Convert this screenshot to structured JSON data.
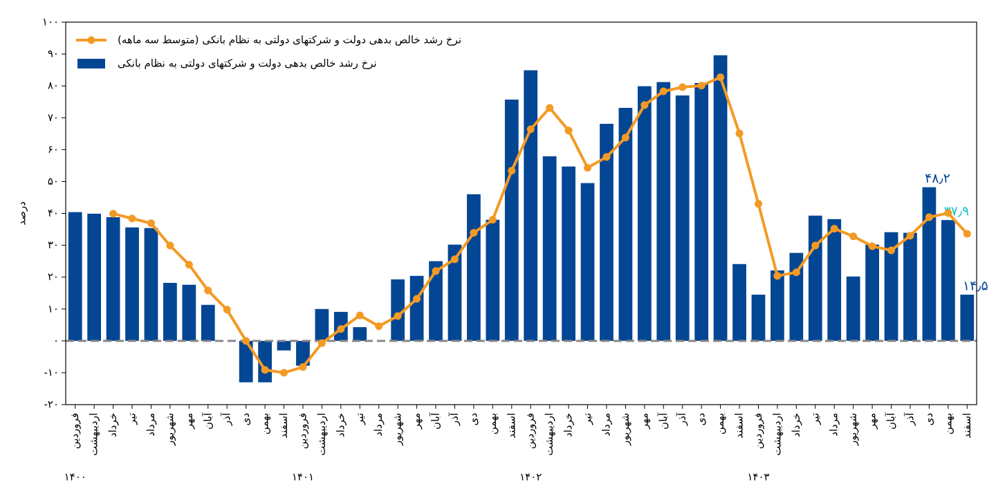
{
  "chart_data": {
    "type": "bar",
    "y_label": "درصد",
    "categories": [
      "فروردین",
      "اردیبهشت",
      "خرداد",
      "تیر",
      "مرداد",
      "شهریور",
      "مهر",
      "آبان",
      "آذر",
      "دی",
      "بهمن",
      "اسفند",
      "فروردین",
      "اردیبهشت",
      "خرداد",
      "تیر",
      "مرداد",
      "شهریور",
      "مهر",
      "آبان",
      "آذر",
      "دی",
      "بهمن",
      "اسفند",
      "فروردین",
      "اردیبهشت",
      "خرداد",
      "تیر",
      "مرداد",
      "شهریور",
      "مهر",
      "آبان",
      "آذر",
      "دی",
      "بهمن",
      "اسفند",
      "فروردین",
      "اردیبهشت",
      "خرداد",
      "تیر",
      "مرداد",
      "شهریور",
      "مهر",
      "آبان",
      "آذر",
      "دی",
      "بهمن",
      "اسفند"
    ],
    "years": [
      "۱۴۰۰",
      "۱۴۰۱",
      "۱۴۰۲",
      "۱۴۰۳"
    ],
    "series": [
      {
        "name": "نرخ رشد خالص بدهی دولت و شرکتهای دولتی به نظام بانکی (متوسط سه ماهه)",
        "type": "line",
        "color": "#f39a24",
        "values": [
          null,
          null,
          39.9,
          38.4,
          36.9,
          29.9,
          23.9,
          15.8,
          9.8,
          0,
          -9.1,
          -10.0,
          -8.2,
          -0.7,
          3.7,
          8.0,
          4.6,
          7.8,
          13.2,
          21.9,
          25.6,
          33.9,
          38.0,
          53.4,
          66.4,
          73.1,
          66.0,
          54.3,
          57.7,
          63.8,
          74.0,
          78.3,
          79.6,
          80.1,
          82.7,
          65.1,
          43.0,
          20.4,
          21.5,
          29.9,
          35.2,
          32.8,
          29.7,
          28.4,
          33.0,
          38.8,
          40.1,
          33.6
        ]
      },
      {
        "name": "نرخ رشد خالص بدهی دولت و شرکتهای دولتی به نظام بانکی",
        "type": "bar",
        "color": "#034694",
        "values": [
          40.4,
          39.9,
          38.8,
          35.6,
          35.4,
          18.2,
          17.6,
          11.3,
          0,
          -13.0,
          -13.0,
          -3.0,
          -7.8,
          10.0,
          9.1,
          4.3,
          0,
          19.3,
          20.4,
          25.0,
          30.2,
          46.0,
          38.0,
          75.7,
          84.9,
          57.9,
          54.7,
          49.5,
          68.1,
          73.1,
          79.9,
          81.2,
          77.0,
          80.9,
          89.6,
          24.1,
          14.5,
          22.1,
          27.6,
          39.3,
          38.2,
          20.2,
          30.2,
          34.1,
          33.9,
          48.2,
          37.9,
          14.5
        ],
        "value_labels": [
          null,
          null,
          null,
          null,
          null,
          null,
          null,
          null,
          null,
          null,
          null,
          null,
          null,
          null,
          null,
          null,
          null,
          null,
          null,
          null,
          null,
          null,
          null,
          null,
          null,
          null,
          null,
          null,
          null,
          null,
          null,
          null,
          null,
          null,
          null,
          null,
          null,
          null,
          null,
          null,
          null,
          null,
          null,
          null,
          null,
          "۴۸٫۲",
          "۳۷٫۹",
          "۱۴٫۵"
        ],
        "value_label_colors": [
          null,
          null,
          null,
          null,
          null,
          null,
          null,
          null,
          null,
          null,
          null,
          null,
          null,
          null,
          null,
          null,
          null,
          null,
          null,
          null,
          null,
          null,
          null,
          null,
          null,
          null,
          null,
          null,
          null,
          null,
          null,
          null,
          null,
          null,
          null,
          null,
          null,
          null,
          null,
          null,
          null,
          null,
          null,
          null,
          null,
          "#034694",
          "#17becf",
          "#034694"
        ]
      }
    ],
    "ylim": [
      -20,
      100
    ],
    "yticks": [
      {
        "value": -20,
        "label": "-۲۰"
      },
      {
        "value": -10,
        "label": "-۱۰"
      },
      {
        "value": 0,
        "label": "۰"
      },
      {
        "value": 10,
        "label": "۱۰"
      },
      {
        "value": 20,
        "label": "۲۰"
      },
      {
        "value": 30,
        "label": "۳۰"
      },
      {
        "value": 40,
        "label": "۴۰"
      },
      {
        "value": 50,
        "label": "۵۰"
      },
      {
        "value": 60,
        "label": "۶۰"
      },
      {
        "value": 70,
        "label": "۷۰"
      },
      {
        "value": 80,
        "label": "۸۰"
      },
      {
        "value": 90,
        "label": "۹۰"
      },
      {
        "value": 100,
        "label": "۱۰۰"
      }
    ],
    "legend": "upper left"
  }
}
